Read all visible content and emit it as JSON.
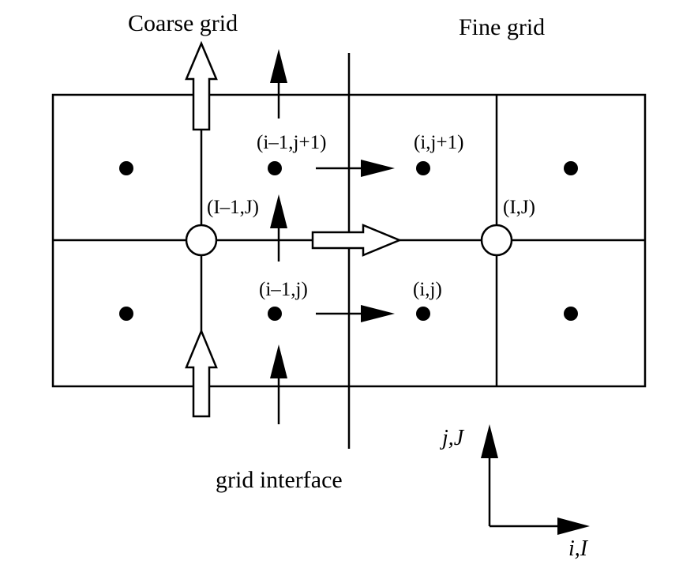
{
  "title_coarse": "Coarse grid",
  "title_fine": "Fine grid",
  "interface_label": "grid interface",
  "node_labels": {
    "im1_jp1": "(i–1,j+1)",
    "i_jp1": "(i,j+1)",
    "Im1_J": "(I–1,J)",
    "I_J": "(I,J)",
    "im1_j": "(i–1,j)",
    "i_j": "(i,j)"
  },
  "axis_labels": {
    "vertical": "j,J",
    "horizontal": "i,I"
  }
}
